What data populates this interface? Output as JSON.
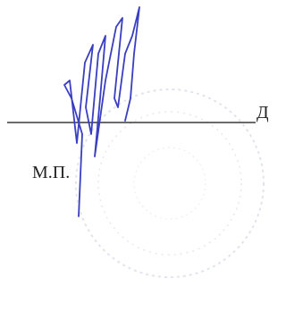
{
  "document": {
    "stamp_label": "М.П.",
    "edge_text": "Д"
  }
}
